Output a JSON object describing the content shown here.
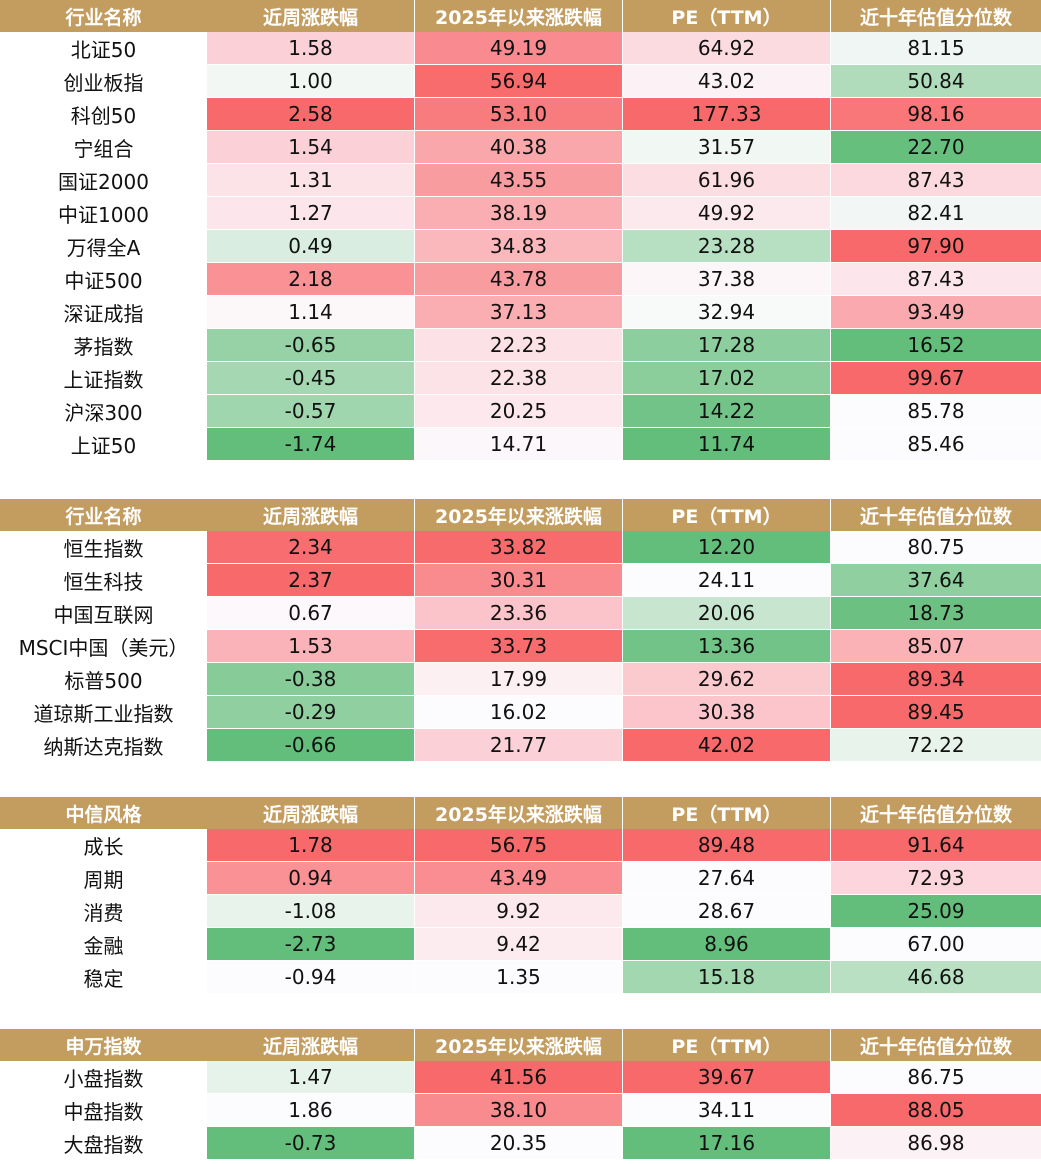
{
  "colors": {
    "header_bg": "#c39c5f",
    "header_text": "#ffffff",
    "red_strong": "#f8696b",
    "green_strong": "#63be7b"
  },
  "tables": [
    {
      "headers": [
        "行业名称",
        "近周涨跌幅",
        "2025年以来涨跌幅",
        "PE（TTM）",
        "近十年估值分位数"
      ],
      "rows": [
        {
          "name": "北证50",
          "cells": [
            {
              "v": "1.58",
              "c": "#fbd0d6"
            },
            {
              "v": "49.19",
              "c": "#f98a8f"
            },
            {
              "v": "64.92",
              "c": "#fbdbe0"
            },
            {
              "v": "81.15",
              "c": "#f0f6f3"
            }
          ]
        },
        {
          "name": "创业板指",
          "cells": [
            {
              "v": "1.00",
              "c": "#f2f7f4"
            },
            {
              "v": "56.94",
              "c": "#f86c6e"
            },
            {
              "v": "43.02",
              "c": "#fcf1f4"
            },
            {
              "v": "50.84",
              "c": "#b0dcbb"
            }
          ]
        },
        {
          "name": "科创50",
          "cells": [
            {
              "v": "2.58",
              "c": "#f8696b"
            },
            {
              "v": "53.10",
              "c": "#f87b7e"
            },
            {
              "v": "177.33",
              "c": "#f8696b"
            },
            {
              "v": "98.16",
              "c": "#f97679"
            }
          ]
        },
        {
          "name": "宁组合",
          "cells": [
            {
              "v": "1.54",
              "c": "#fbd0d6"
            },
            {
              "v": "40.38",
              "c": "#faa7ab"
            },
            {
              "v": "31.57",
              "c": "#f1f7f3"
            },
            {
              "v": "22.70",
              "c": "#67bf7e"
            }
          ]
        },
        {
          "name": "国证2000",
          "cells": [
            {
              "v": "1.31",
              "c": "#fce3e8"
            },
            {
              "v": "43.55",
              "c": "#f99ca0"
            },
            {
              "v": "61.96",
              "c": "#fbdde2"
            },
            {
              "v": "87.43",
              "c": "#fcd9df"
            }
          ]
        },
        {
          "name": "中证1000",
          "cells": [
            {
              "v": "1.27",
              "c": "#fce6eb"
            },
            {
              "v": "38.19",
              "c": "#faaeb2"
            },
            {
              "v": "49.92",
              "c": "#fbe9ee"
            },
            {
              "v": "82.41",
              "c": "#f2f7f5"
            }
          ]
        },
        {
          "name": "万得全A",
          "cells": [
            {
              "v": "0.49",
              "c": "#d9ede0"
            },
            {
              "v": "34.83",
              "c": "#fab8bd"
            },
            {
              "v": "23.28",
              "c": "#b7dfc1"
            },
            {
              "v": "97.90",
              "c": "#f8696b"
            }
          ]
        },
        {
          "name": "中证500",
          "cells": [
            {
              "v": "2.18",
              "c": "#f99195"
            },
            {
              "v": "43.78",
              "c": "#f99ca0"
            },
            {
              "v": "37.38",
              "c": "#fcf6f9"
            },
            {
              "v": "87.43",
              "c": "#fce6eb"
            }
          ]
        },
        {
          "name": "深证成指",
          "cells": [
            {
              "v": "1.14",
              "c": "#fcf8fa"
            },
            {
              "v": "37.13",
              "c": "#faaeb2"
            },
            {
              "v": "32.94",
              "c": "#f8fafa"
            },
            {
              "v": "93.49",
              "c": "#faaaae"
            }
          ]
        },
        {
          "name": "茅指数",
          "cells": [
            {
              "v": "-0.65",
              "c": "#97d2a6"
            },
            {
              "v": "22.23",
              "c": "#fce2e7"
            },
            {
              "v": "17.28",
              "c": "#8cce9d"
            },
            {
              "v": "16.52",
              "c": "#63be7b"
            }
          ]
        },
        {
          "name": "上证指数",
          "cells": [
            {
              "v": "-0.45",
              "c": "#a5d8b2"
            },
            {
              "v": "22.38",
              "c": "#fce3e8"
            },
            {
              "v": "17.02",
              "c": "#8ccd9c"
            },
            {
              "v": "99.67",
              "c": "#f8696b"
            }
          ]
        },
        {
          "name": "沪深300",
          "cells": [
            {
              "v": "-0.57",
              "c": "#a0d6ae"
            },
            {
              "v": "20.25",
              "c": "#fce8ed"
            },
            {
              "v": "14.22",
              "c": "#72c387"
            },
            {
              "v": "85.78",
              "c": "#fcfcff"
            }
          ]
        },
        {
          "name": "上证50",
          "cells": [
            {
              "v": "-1.74",
              "c": "#63be7b"
            },
            {
              "v": "14.71",
              "c": "#fcf7fa"
            },
            {
              "v": "11.74",
              "c": "#63be7b"
            },
            {
              "v": "85.46",
              "c": "#fcfcff"
            }
          ]
        }
      ]
    },
    {
      "headers": [
        "行业名称",
        "近周涨跌幅",
        "2025年以来涨跌幅",
        "PE（TTM）",
        "近十年估值分位数"
      ],
      "rows": [
        {
          "name": "恒生指数",
          "cells": [
            {
              "v": "2.34",
              "c": "#f86d6f"
            },
            {
              "v": "33.82",
              "c": "#f86b6d"
            },
            {
              "v": "12.20",
              "c": "#63be7b"
            },
            {
              "v": "80.75",
              "c": "#fcfcff"
            }
          ]
        },
        {
          "name": "恒生科技",
          "cells": [
            {
              "v": "2.37",
              "c": "#f8696b"
            },
            {
              "v": "30.31",
              "c": "#f98a8e"
            },
            {
              "v": "24.11",
              "c": "#fcfcff"
            },
            {
              "v": "37.64",
              "c": "#8fcfa0"
            }
          ]
        },
        {
          "name": "中国互联网",
          "cells": [
            {
              "v": "0.67",
              "c": "#fcf8fb"
            },
            {
              "v": "23.36",
              "c": "#fbc4ca"
            },
            {
              "v": "20.06",
              "c": "#c8e6cf"
            },
            {
              "v": "18.73",
              "c": "#6cc182"
            }
          ]
        },
        {
          "name": "MSCI中国（美元）",
          "cells": [
            {
              "v": "1.53",
              "c": "#fab4b9"
            },
            {
              "v": "33.73",
              "c": "#f86c6e"
            },
            {
              "v": "13.36",
              "c": "#72c387"
            },
            {
              "v": "85.07",
              "c": "#fbb2b7"
            }
          ]
        },
        {
          "name": "标普500",
          "cells": [
            {
              "v": "-0.38",
              "c": "#87cb99"
            },
            {
              "v": "17.99",
              "c": "#fcf0f3"
            },
            {
              "v": "29.62",
              "c": "#fbcacf"
            },
            {
              "v": "89.34",
              "c": "#f8696b"
            }
          ]
        },
        {
          "name": "道琼斯工业指数",
          "cells": [
            {
              "v": "-0.29",
              "c": "#90cfa0"
            },
            {
              "v": "16.02",
              "c": "#fcfcff"
            },
            {
              "v": "30.38",
              "c": "#fbc5cb"
            },
            {
              "v": "89.45",
              "c": "#f8696b"
            }
          ]
        },
        {
          "name": "纳斯达克指数",
          "cells": [
            {
              "v": "-0.66",
              "c": "#63be7b"
            },
            {
              "v": "21.77",
              "c": "#fbd0d6"
            },
            {
              "v": "42.02",
              "c": "#f8696b"
            },
            {
              "v": "72.22",
              "c": "#e8f3ec"
            }
          ]
        }
      ]
    },
    {
      "headers": [
        "中信风格",
        "近周涨跌幅",
        "2025年以来涨跌幅",
        "PE（TTM）",
        "近十年估值分位数"
      ],
      "rows": [
        {
          "name": "成长",
          "cells": [
            {
              "v": "1.78",
              "c": "#f8696b"
            },
            {
              "v": "56.75",
              "c": "#f8696b"
            },
            {
              "v": "89.48",
              "c": "#f8696b"
            },
            {
              "v": "91.64",
              "c": "#f8696b"
            }
          ]
        },
        {
          "name": "周期",
          "cells": [
            {
              "v": "0.94",
              "c": "#f99195"
            },
            {
              "v": "43.49",
              "c": "#f98d91"
            },
            {
              "v": "27.64",
              "c": "#fcfcff"
            },
            {
              "v": "72.93",
              "c": "#fcd6dc"
            }
          ]
        },
        {
          "name": "消费",
          "cells": [
            {
              "v": "-1.08",
              "c": "#e8f3ec"
            },
            {
              "v": "9.92",
              "c": "#fce9ee"
            },
            {
              "v": "28.67",
              "c": "#fcfbfe"
            },
            {
              "v": "25.09",
              "c": "#63be7b"
            }
          ]
        },
        {
          "name": "金融",
          "cells": [
            {
              "v": "-2.73",
              "c": "#63be7b"
            },
            {
              "v": "9.42",
              "c": "#fcecf0"
            },
            {
              "v": "8.96",
              "c": "#63be7b"
            },
            {
              "v": "67.00",
              "c": "#fcfcff"
            }
          ]
        },
        {
          "name": "稳定",
          "cells": [
            {
              "v": "-0.94",
              "c": "#fcfcff"
            },
            {
              "v": "1.35",
              "c": "#fcfcff"
            },
            {
              "v": "15.18",
              "c": "#a3d7b0"
            },
            {
              "v": "46.68",
              "c": "#b9e0c3"
            }
          ]
        }
      ]
    },
    {
      "headers": [
        "申万指数",
        "近周涨跌幅",
        "2025年以来涨跌幅",
        "PE（TTM）",
        "近十年估值分位数"
      ],
      "rows": [
        {
          "name": "小盘指数",
          "cells": [
            {
              "v": "1.47",
              "c": "#e6f3ea"
            },
            {
              "v": "41.56",
              "c": "#f8696b"
            },
            {
              "v": "39.67",
              "c": "#f8696b"
            },
            {
              "v": "86.75",
              "c": "#fcfcff"
            }
          ]
        },
        {
          "name": "中盘指数",
          "cells": [
            {
              "v": "1.86",
              "c": "#fcfcff"
            },
            {
              "v": "38.10",
              "c": "#f98a8e"
            },
            {
              "v": "34.11",
              "c": "#fcfcff"
            },
            {
              "v": "88.05",
              "c": "#f8696b"
            }
          ]
        },
        {
          "name": "大盘指数",
          "cells": [
            {
              "v": "-0.73",
              "c": "#63be7b"
            },
            {
              "v": "20.35",
              "c": "#fcfcff"
            },
            {
              "v": "17.16",
              "c": "#63be7b"
            },
            {
              "v": "86.98",
              "c": "#fcf1f4"
            }
          ]
        }
      ]
    }
  ]
}
